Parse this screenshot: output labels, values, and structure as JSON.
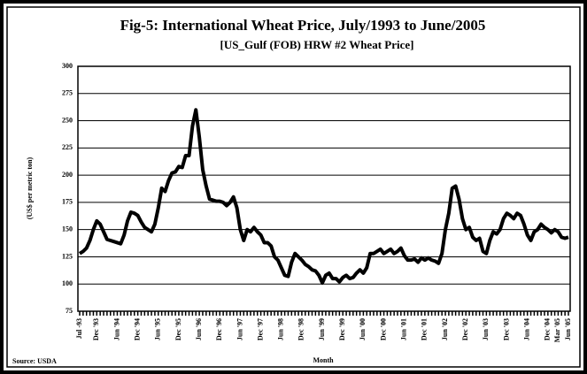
{
  "chart_data": {
    "type": "line",
    "title": "Fig-5: International Wheat Price, July/1993 to June/2005",
    "subtitle": "[US_Gulf (FOB) HRW #2 Wheat Price]",
    "y_label": "(US$ per metric ton)",
    "x_label": "Month",
    "source": "Source: USDA",
    "categories": [
      "Jul -93",
      null,
      null,
      null,
      null,
      "Dec '93",
      null,
      null,
      null,
      null,
      null,
      "Jun '94",
      null,
      null,
      null,
      null,
      null,
      "Dec '94",
      null,
      null,
      null,
      null,
      null,
      "Jun '95",
      null,
      null,
      null,
      null,
      null,
      "Dec '95",
      null,
      null,
      null,
      null,
      null,
      "Jun '96",
      null,
      null,
      null,
      null,
      null,
      "Dec '96",
      null,
      null,
      null,
      null,
      null,
      "Jun '97",
      null,
      null,
      null,
      null,
      null,
      "Dec '97",
      null,
      null,
      null,
      null,
      null,
      "Jun '98",
      null,
      null,
      null,
      null,
      null,
      "Dec '98",
      null,
      null,
      null,
      null,
      null,
      "Jun '99",
      null,
      null,
      null,
      null,
      null,
      "Dec '99",
      null,
      null,
      null,
      null,
      null,
      "Jun '00",
      null,
      null,
      null,
      null,
      null,
      "Dec '00",
      null,
      null,
      null,
      null,
      null,
      "Jun '01",
      null,
      null,
      null,
      null,
      null,
      "Dec '01",
      null,
      null,
      null,
      null,
      null,
      "Jun '02",
      null,
      null,
      null,
      null,
      null,
      "Dec '02",
      null,
      null,
      null,
      null,
      null,
      "Jun '03",
      null,
      null,
      null,
      null,
      null,
      "Dec '03",
      null,
      null,
      null,
      null,
      null,
      "Jun '04",
      null,
      null,
      null,
      null,
      null,
      "Dec '04",
      null,
      null,
      "Mar '05",
      null,
      null,
      "Jun '05"
    ],
    "series": [
      {
        "name": "HRW #2 Wheat Price",
        "color": "#000000",
        "values": [
          128,
          130,
          133,
          140,
          150,
          158,
          155,
          148,
          141,
          140,
          139,
          138,
          137,
          145,
          158,
          166,
          165,
          163,
          157,
          152,
          150,
          148,
          155,
          170,
          188,
          185,
          195,
          202,
          203,
          208,
          207,
          218,
          218,
          245,
          260,
          235,
          205,
          190,
          178,
          177,
          176,
          176,
          175,
          172,
          175,
          180,
          170,
          150,
          140,
          150,
          148,
          152,
          148,
          145,
          138,
          138,
          135,
          125,
          122,
          115,
          108,
          107,
          120,
          128,
          125,
          122,
          118,
          116,
          113,
          112,
          108,
          101,
          108,
          110,
          105,
          105,
          102,
          106,
          108,
          105,
          106,
          110,
          113,
          110,
          115,
          128,
          128,
          130,
          132,
          128,
          130,
          132,
          128,
          130,
          133,
          126,
          122,
          122,
          123,
          120,
          124,
          122,
          124,
          122,
          121,
          119,
          128,
          150,
          165,
          188,
          190,
          178,
          160,
          150,
          152,
          143,
          140,
          142,
          130,
          128,
          140,
          148,
          146,
          150,
          160,
          165,
          163,
          160,
          165,
          163,
          155,
          145,
          140,
          148,
          150,
          155,
          152,
          150,
          147,
          150,
          148,
          143,
          142,
          143
        ]
      }
    ],
    "ylim": [
      75,
      300
    ],
    "yticks": [
      75,
      100,
      125,
      150,
      175,
      200,
      225,
      250,
      275,
      300
    ],
    "grid": true
  }
}
